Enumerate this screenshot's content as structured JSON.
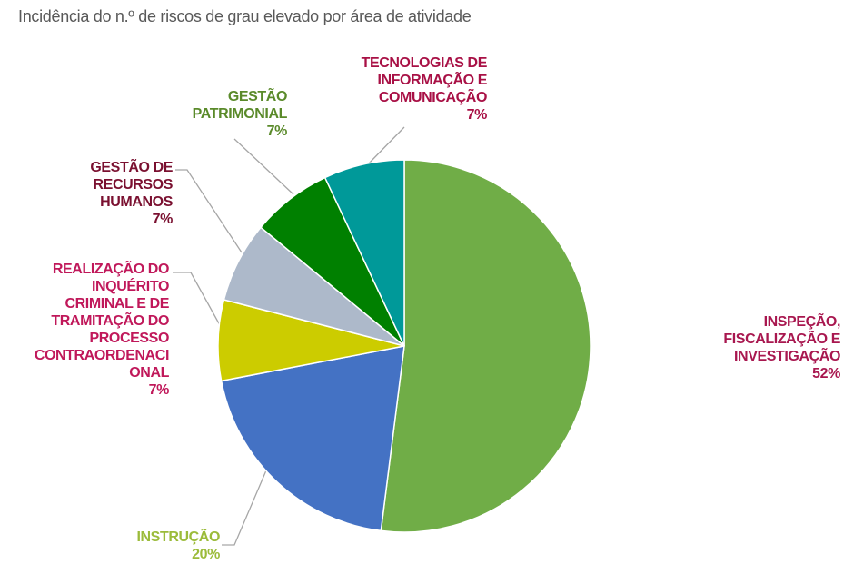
{
  "chart_data": {
    "type": "pie",
    "title": "Incidência do n.º de riscos de grau elevado por área de atividade",
    "categories": [
      "INSPEÇÃO, FISCALIZAÇÃO E INVESTIGAÇÃO",
      "INSTRUÇÃO",
      "REALIZAÇÃO DO INQUÉRITO CRIMINAL E DE TRAMITAÇÃO DO PROCESSO CONTRAORDENACIONAL",
      "GESTÃO DE RECURSOS HUMANOS",
      "GESTÃO PATRIMONIAL",
      "TECNOLOGIAS DE INFORMAÇÃO E COMUNICAÇÃO"
    ],
    "values": [
      52,
      20,
      7,
      7,
      7,
      7
    ],
    "value_labels": [
      "52%",
      "20%",
      "7%",
      "7%",
      "7%",
      "7%"
    ],
    "colors": [
      "#70ad47",
      "#4472c4",
      "#cccc00",
      "#adb9ca",
      "#008000",
      "#009999"
    ]
  }
}
